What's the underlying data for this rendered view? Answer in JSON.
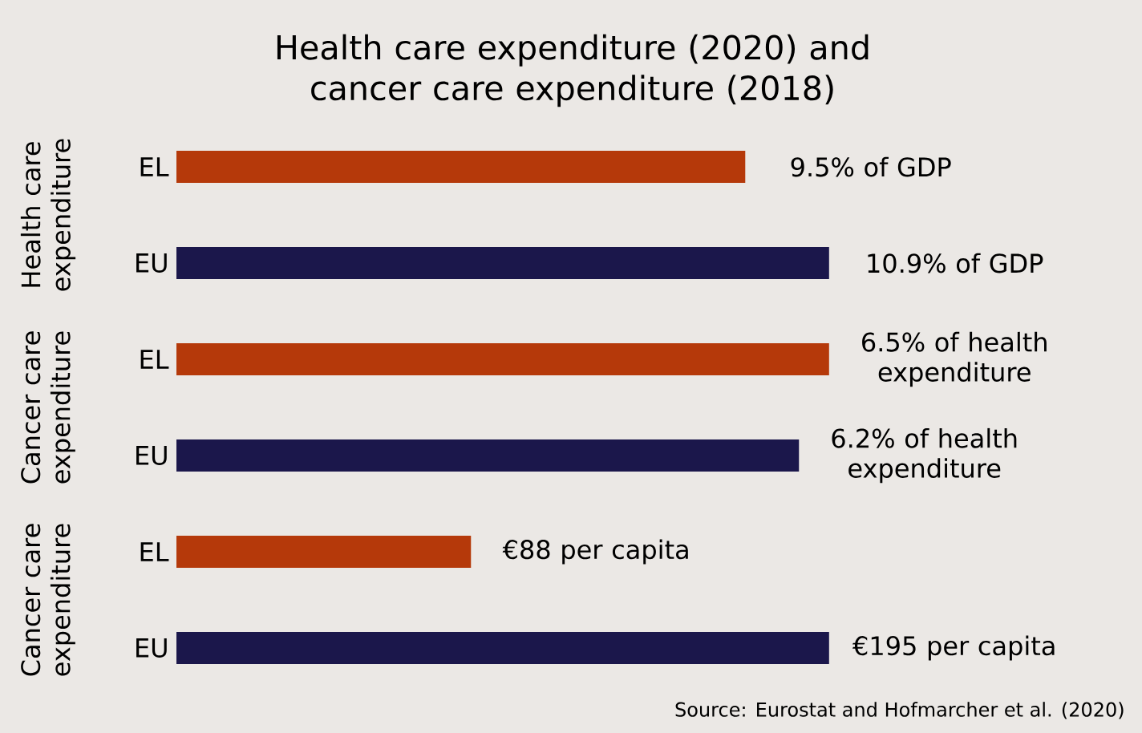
{
  "chart_data": [
    {
      "type": "bar",
      "orientation": "horizontal",
      "title": "Health care expenditure (2020) and cancer care expenditure (2018)",
      "ylabel": "Health care expenditure",
      "categories": [
        "EL",
        "EU"
      ],
      "values": [
        9.5,
        10.9
      ],
      "colors": [
        "#b5390a",
        "#1b174b"
      ],
      "value_labels": [
        "9.5% of GDP",
        "10.9% of GDP"
      ],
      "tick_labels": "y"
    },
    {
      "type": "bar",
      "orientation": "horizontal",
      "ylabel": "Cancer care expenditure",
      "categories": [
        "EL",
        "EU"
      ],
      "values": [
        6.5,
        6.2
      ],
      "colors": [
        "#b5390a",
        "#1b174b"
      ],
      "value_labels": [
        "6.5% of health expenditure",
        "6.2% of health expenditure"
      ],
      "tick_labels": "y"
    },
    {
      "type": "bar",
      "orientation": "horizontal",
      "ylabel": "Cancer care expenditure",
      "categories": [
        "EL",
        "EU"
      ],
      "values": [
        88,
        195
      ],
      "colors": [
        "#b5390a",
        "#1b174b"
      ],
      "value_labels": [
        "€88 per capita",
        "€195 per capita"
      ],
      "tick_labels": "y",
      "annotations": [
        "Source: Eurostat and Hofmarcher et al. (2020)"
      ]
    }
  ]
}
